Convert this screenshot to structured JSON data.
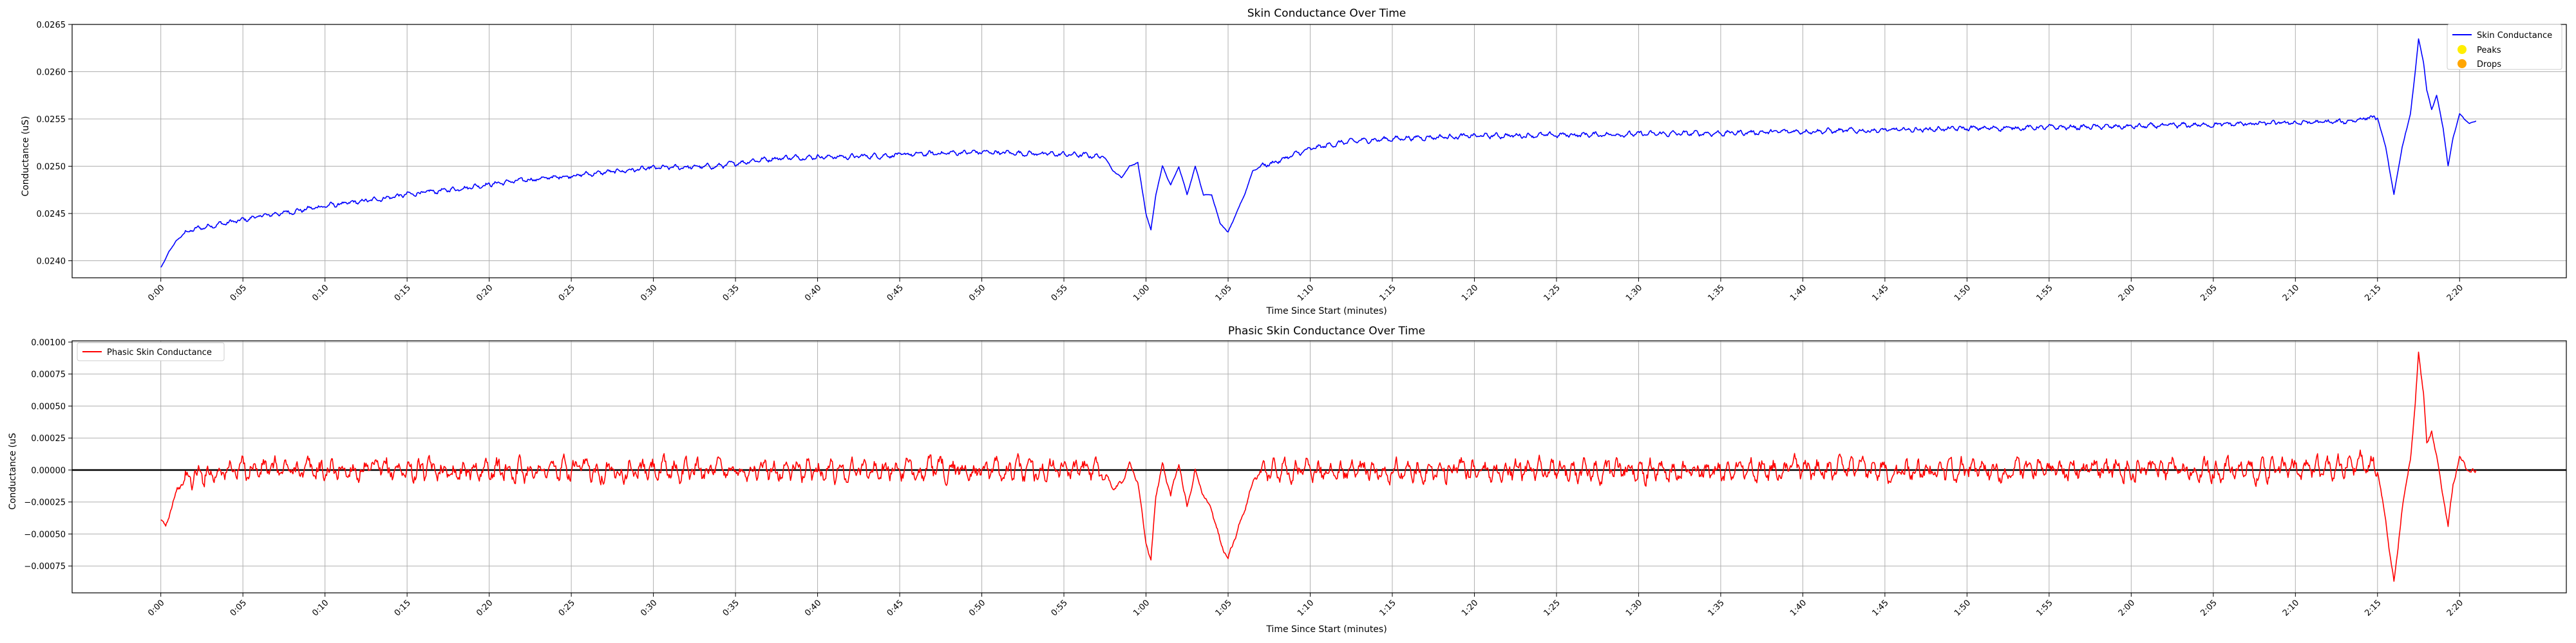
{
  "chart_data": [
    {
      "type": "line",
      "title": "Skin Conductance Over Time",
      "xlabel": "Time Since Start (minutes)",
      "ylabel": "Conductance (uS)",
      "xlim": [
        -5.4,
        146.5
      ],
      "ylim": [
        0.02382,
        0.0265
      ],
      "x_ticks": [
        "0:00",
        "0:05",
        "0:10",
        "0:15",
        "0:20",
        "0:25",
        "0:30",
        "0:35",
        "0:40",
        "0:45",
        "0:50",
        "0:55",
        "1:00",
        "1:05",
        "1:10",
        "1:15",
        "1:20",
        "1:25",
        "1:30",
        "1:35",
        "1:40",
        "1:45",
        "1:50",
        "1:55",
        "2:00",
        "2:05",
        "2:10",
        "2:15",
        "2:20"
      ],
      "y_ticks": [
        "0.0240",
        "0.0245",
        "0.0250",
        "0.0255",
        "0.0260",
        "0.0265"
      ],
      "y_tick_values": [
        0.024,
        0.0245,
        0.025,
        0.0255,
        0.026,
        0.0265
      ],
      "grid": true,
      "legend": "top-right",
      "legend_entries": [
        "Skin Conductance",
        "Peaks",
        "Drops"
      ],
      "series": [
        {
          "name": "Skin Conductance",
          "color": "#0000ff",
          "points": [
            [
              0,
              0.02393
            ],
            [
              0.2,
              0.02398
            ],
            [
              0.5,
              0.0241
            ],
            [
              1,
              0.02422
            ],
            [
              1.5,
              0.0243
            ],
            [
              2,
              0.02433
            ],
            [
              3,
              0.02437
            ],
            [
              4,
              0.0244
            ],
            [
              5,
              0.02443
            ],
            [
              6,
              0.02447
            ],
            [
              8,
              0.02452
            ],
            [
              10,
              0.02458
            ],
            [
              12,
              0.02462
            ],
            [
              15,
              0.0247
            ],
            [
              18,
              0.02476
            ],
            [
              20,
              0.02481
            ],
            [
              22,
              0.02485
            ],
            [
              25,
              0.0249
            ],
            [
              28,
              0.02495
            ],
            [
              30,
              0.02498
            ],
            [
              32,
              0.02499
            ],
            [
              34,
              0.025
            ],
            [
              35,
              0.02503
            ],
            [
              36,
              0.02506
            ],
            [
              38,
              0.02509
            ],
            [
              40,
              0.0251
            ],
            [
              42,
              0.0251
            ],
            [
              45,
              0.02512
            ],
            [
              48,
              0.02514
            ],
            [
              50,
              0.02515
            ],
            [
              52,
              0.02514
            ],
            [
              54,
              0.02513
            ],
            [
              56,
              0.02512
            ],
            [
              57.5,
              0.0251
            ],
            [
              58,
              0.02495
            ],
            [
              58.5,
              0.02488
            ],
            [
              59,
              0.025
            ],
            [
              59.5,
              0.02504
            ],
            [
              60,
              0.0245
            ],
            [
              60.3,
              0.02432
            ],
            [
              60.6,
              0.0247
            ],
            [
              61,
              0.025
            ],
            [
              61.5,
              0.0248
            ],
            [
              62,
              0.025
            ],
            [
              62.5,
              0.0247
            ],
            [
              63,
              0.025
            ],
            [
              63.5,
              0.0247
            ],
            [
              64,
              0.0247
            ],
            [
              64.5,
              0.0244
            ],
            [
              65,
              0.0243
            ],
            [
              65.5,
              0.0245
            ],
            [
              66,
              0.0247
            ],
            [
              66.5,
              0.02495
            ],
            [
              67,
              0.025
            ],
            [
              68,
              0.02505
            ],
            [
              69,
              0.02512
            ],
            [
              70,
              0.02518
            ],
            [
              71,
              0.02522
            ],
            [
              72,
              0.02525
            ],
            [
              73,
              0.02527
            ],
            [
              74,
              0.02528
            ],
            [
              76,
              0.0253
            ],
            [
              78,
              0.02531
            ],
            [
              80,
              0.02532
            ],
            [
              85,
              0.02533
            ],
            [
              90,
              0.02534
            ],
            [
              95,
              0.02535
            ],
            [
              100,
              0.02537
            ],
            [
              105,
              0.02538
            ],
            [
              110,
              0.0254
            ],
            [
              115,
              0.02541
            ],
            [
              120,
              0.02542
            ],
            [
              125,
              0.02544
            ],
            [
              130,
              0.02546
            ],
            [
              133,
              0.02547
            ],
            [
              134,
              0.0255
            ],
            [
              134.5,
              0.02552
            ],
            [
              135,
              0.02551
            ],
            [
              135.5,
              0.0252
            ],
            [
              136,
              0.0247
            ],
            [
              136.5,
              0.0252
            ],
            [
              137,
              0.02555
            ],
            [
              137.3,
              0.026
            ],
            [
              137.5,
              0.02635
            ],
            [
              137.8,
              0.0261
            ],
            [
              138,
              0.0258
            ],
            [
              138.3,
              0.0256
            ],
            [
              138.6,
              0.02575
            ],
            [
              139,
              0.0254
            ],
            [
              139.3,
              0.025
            ],
            [
              139.6,
              0.0253
            ],
            [
              140,
              0.02555
            ],
            [
              140.3,
              0.0255
            ],
            [
              140.6,
              0.02545
            ],
            [
              141,
              0.02548
            ]
          ]
        }
      ]
    },
    {
      "type": "line",
      "title": "Phasic Skin Conductance Over Time",
      "xlabel": "Time Since Start (minutes)",
      "ylabel": "Conductance (uS",
      "xlim": [
        -5.4,
        146.5
      ],
      "ylim": [
        -0.00096,
        0.00101
      ],
      "x_ticks": [
        "0:00",
        "0:05",
        "0:10",
        "0:15",
        "0:20",
        "0:25",
        "0:30",
        "0:35",
        "0:40",
        "0:45",
        "0:50",
        "0:55",
        "1:00",
        "1:05",
        "1:10",
        "1:15",
        "1:20",
        "1:25",
        "1:30",
        "1:35",
        "1:40",
        "1:45",
        "1:50",
        "1:55",
        "2:00",
        "2:05",
        "2:10",
        "2:15",
        "2:20"
      ],
      "y_ticks": [
        "−0.00075",
        "−0.00050",
        "−0.00025",
        "0.00000",
        "0.00025",
        "0.00050",
        "0.00075",
        "0.00100"
      ],
      "y_tick_values": [
        -0.00075,
        -0.0005,
        -0.00025,
        0.0,
        0.00025,
        0.0005,
        0.00075,
        0.001
      ],
      "grid": true,
      "legend": "top-left",
      "legend_entries": [
        "Phasic Skin Conductance"
      ],
      "zero_line": true,
      "series": [
        {
          "name": "Phasic Skin Conductance",
          "color": "#ff0000",
          "points": [
            [
              0,
              -0.0004
            ],
            [
              0.3,
              -0.00045
            ],
            [
              0.6,
              -0.0003
            ],
            [
              1,
              -0.00015
            ],
            [
              1.5,
              -8e-05
            ],
            [
              2,
              -5e-05
            ],
            [
              3,
              -2e-05
            ],
            [
              4,
              0.0
            ],
            [
              5,
              1e-05
            ],
            [
              10,
              0.0
            ],
            [
              20,
              0.0
            ],
            [
              30,
              0.0
            ],
            [
              40,
              0.0
            ],
            [
              50,
              0.0
            ],
            [
              56,
              0.0
            ],
            [
              57.5,
              0.0
            ],
            [
              58,
              -0.00015
            ],
            [
              58.5,
              -0.0001
            ],
            [
              59,
              5e-05
            ],
            [
              59.5,
              -0.0001
            ],
            [
              60,
              -0.00055
            ],
            [
              60.3,
              -0.00072
            ],
            [
              60.6,
              -0.0002
            ],
            [
              61,
              5e-05
            ],
            [
              61.5,
              -0.0002
            ],
            [
              62,
              5e-05
            ],
            [
              62.5,
              -0.0003
            ],
            [
              63,
              0.0
            ],
            [
              63.5,
              -0.0002
            ],
            [
              64,
              -0.0003
            ],
            [
              64.5,
              -0.00055
            ],
            [
              65,
              -0.00068
            ],
            [
              65.5,
              -0.0005
            ],
            [
              66,
              -0.0003
            ],
            [
              66.5,
              -0.0001
            ],
            [
              67,
              0.0
            ],
            [
              70,
              0.0
            ],
            [
              80,
              0.0
            ],
            [
              90,
              0.0
            ],
            [
              100,
              0.0
            ],
            [
              110,
              0.0
            ],
            [
              120,
              0.0
            ],
            [
              130,
              0.0
            ],
            [
              134,
              5e-05
            ],
            [
              135,
              0.0
            ],
            [
              135.5,
              -0.0004
            ],
            [
              136,
              -0.00088
            ],
            [
              136.5,
              -0.0003
            ],
            [
              137,
              0.0001
            ],
            [
              137.3,
              0.0005
            ],
            [
              137.5,
              0.00092
            ],
            [
              137.8,
              0.0006
            ],
            [
              138,
              0.0002
            ],
            [
              138.3,
              0.0003
            ],
            [
              138.6,
              0.0001
            ],
            [
              139,
              -0.0002
            ],
            [
              139.3,
              -0.00045
            ],
            [
              139.6,
              -0.0001
            ],
            [
              140,
              0.0001
            ],
            [
              140.3,
              5e-05
            ],
            [
              140.6,
              -2e-05
            ],
            [
              141,
              0.0
            ]
          ]
        }
      ]
    }
  ]
}
